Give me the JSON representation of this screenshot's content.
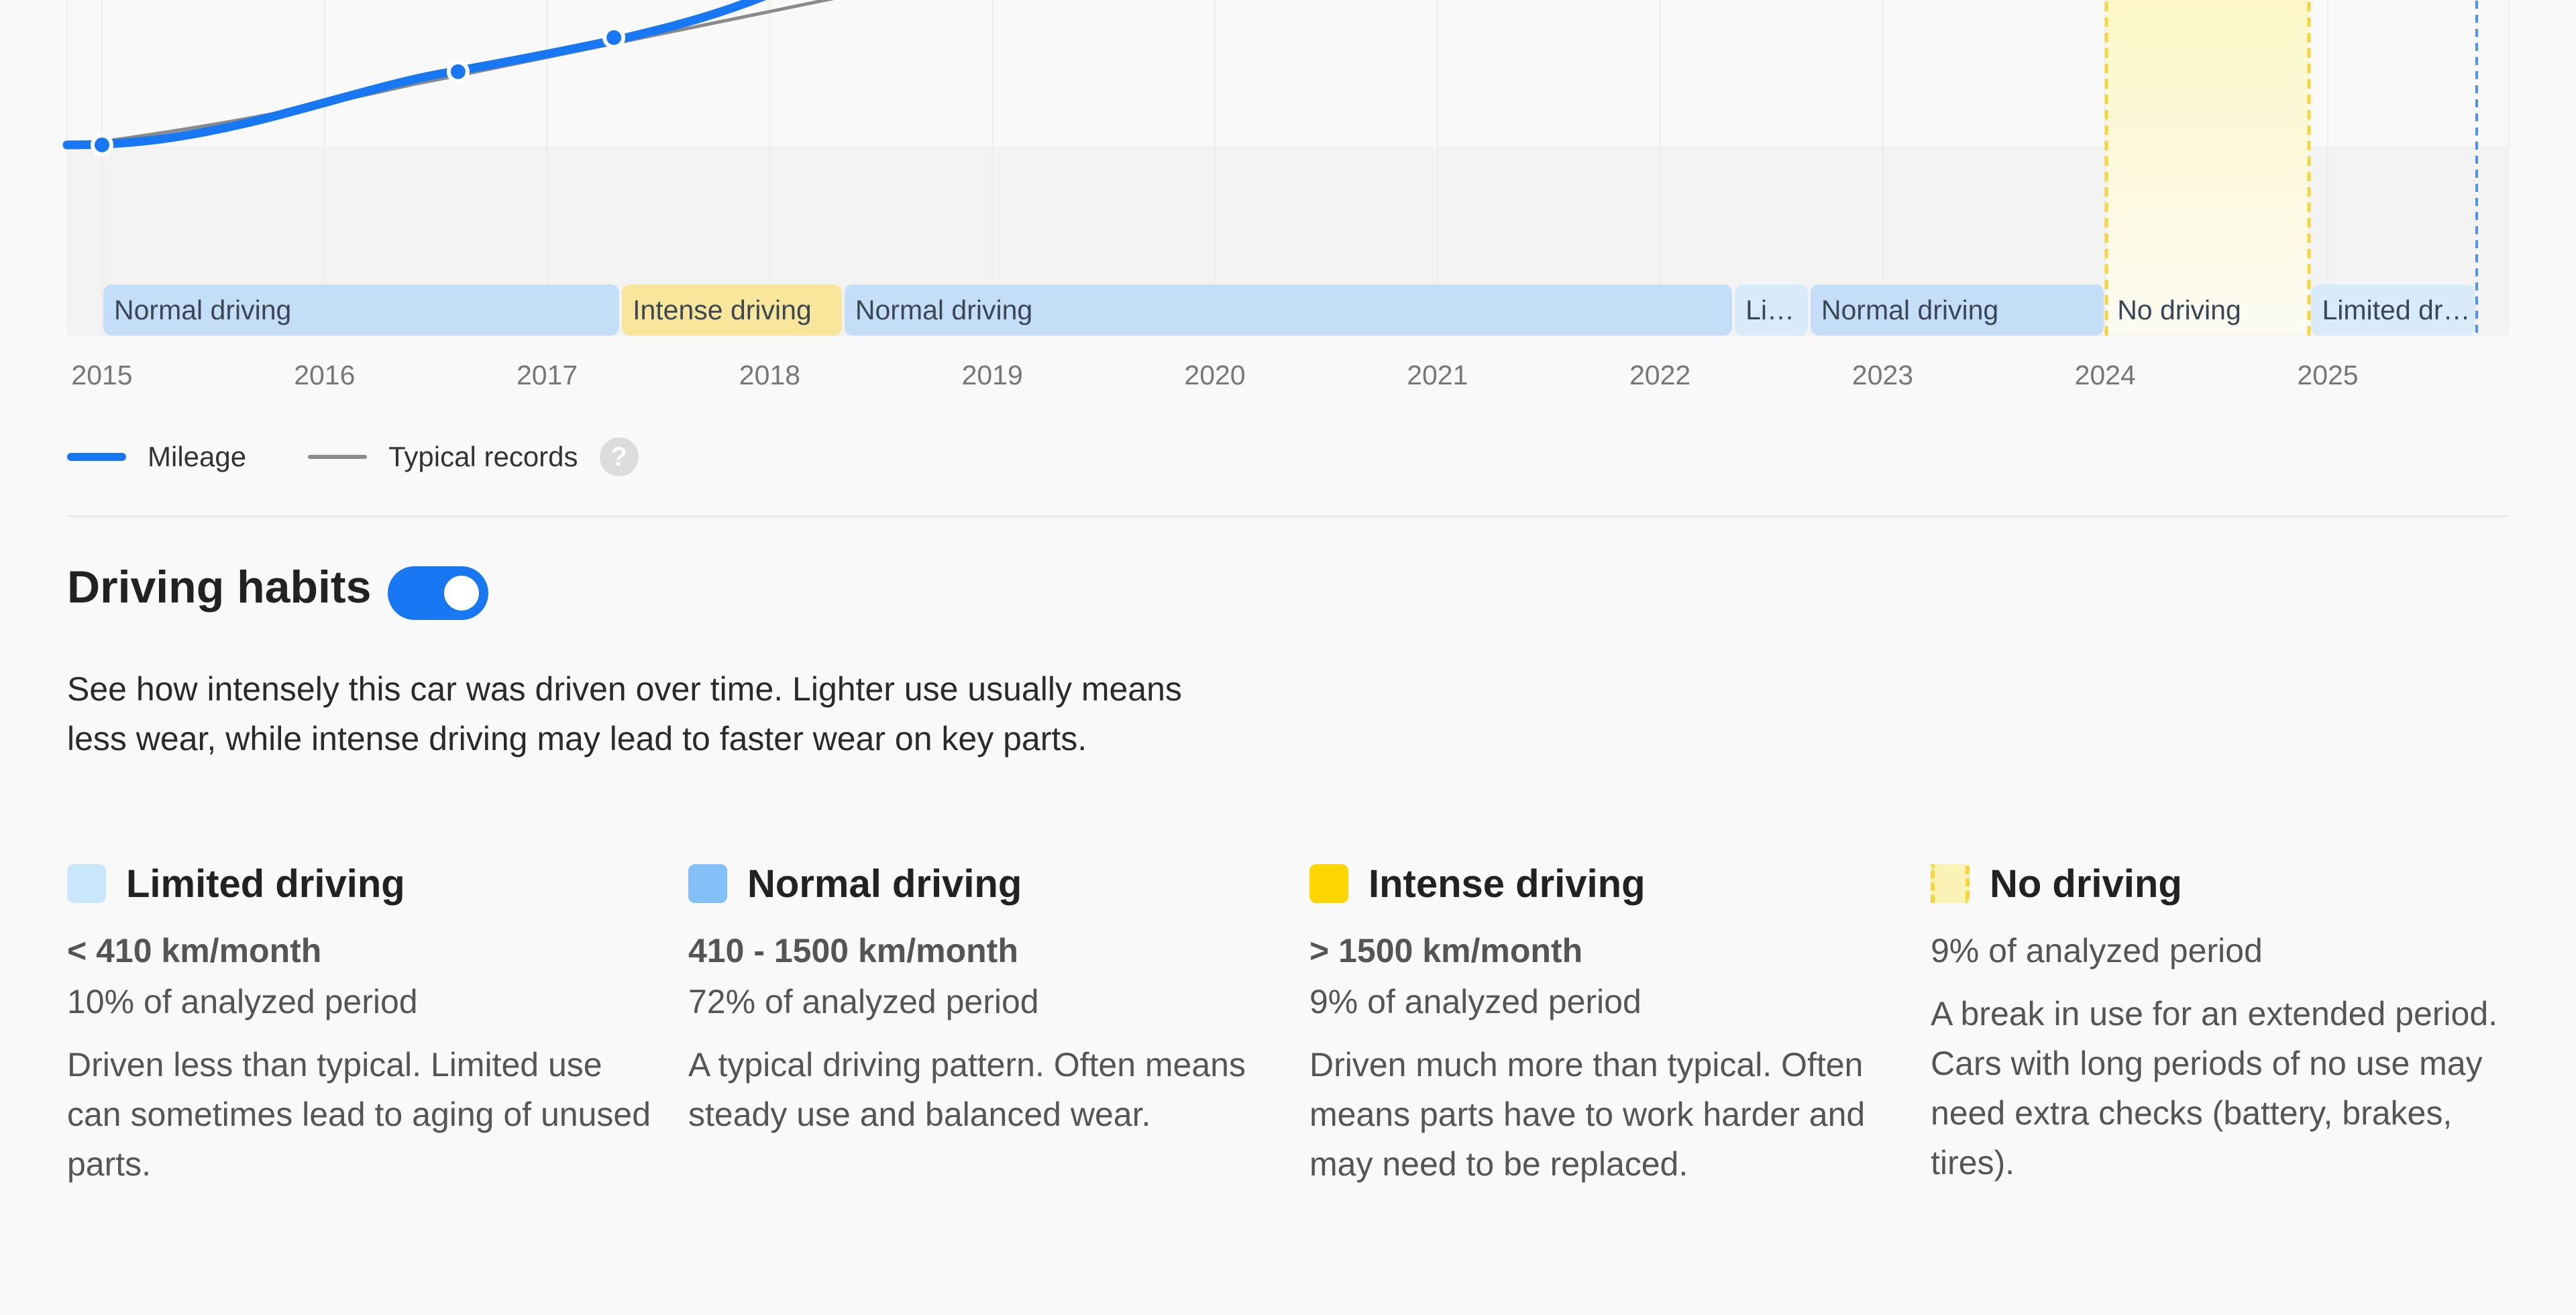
{
  "chart_data": {
    "type": "line",
    "x_ticks": [
      "2015",
      "2016",
      "2017",
      "2018",
      "2019",
      "2020",
      "2021",
      "2022",
      "2023",
      "2024",
      "2025"
    ],
    "series": [
      {
        "name": "Mileage",
        "color": "#1877f2",
        "points": [
          [
            2015.0,
            0
          ],
          [
            2016.6,
            15000
          ],
          [
            2017.3,
            22000
          ]
        ]
      },
      {
        "name": "Typical records",
        "color": "#8a8a8a"
      }
    ],
    "bands": [
      {
        "label": "Normal driving",
        "kind": "normal",
        "start": 2015.0,
        "end": 2017.33
      },
      {
        "label": "Intense driving",
        "kind": "intense",
        "start": 2017.33,
        "end": 2018.33
      },
      {
        "label": "Normal driving",
        "kind": "normal",
        "start": 2018.33,
        "end": 2022.33
      },
      {
        "label": "Limited driving",
        "kind": "limited",
        "start": 2022.33,
        "end": 2022.67
      },
      {
        "label": "Normal driving",
        "kind": "normal",
        "start": 2022.67,
        "end": 2024.0
      },
      {
        "label": "No driving",
        "kind": "none",
        "start": 2024.0,
        "end": 2024.92
      },
      {
        "label": "Limited driving",
        "kind": "limited",
        "start": 2024.92,
        "end": 2025.67
      }
    ],
    "grid": true
  },
  "legend": {
    "mileage": "Mileage",
    "typical": "Typical records",
    "help_icon": "question-mark-icon"
  },
  "section": {
    "title": "Driving habits",
    "toggle_on": true,
    "description": "See how intensely this car was driven over time. Lighter use usually means less wear, while intense driving may lead to faster wear on key parts."
  },
  "categories": [
    {
      "title": "Limited driving",
      "color": "#c9e6fb",
      "range": "< 410 km/month",
      "share": "10% of analyzed period",
      "text": "Driven less than typical. Limited use can sometimes lead to aging of unused parts."
    },
    {
      "title": "Normal driving",
      "color": "#82c0f7",
      "range": "410 - 1500 km/month",
      "share": "72% of analyzed period",
      "text": "A typical driving pattern. Often means steady use and balanced wear."
    },
    {
      "title": "Intense driving",
      "color": "#ffd600",
      "range": "> 1500 km/month",
      "share": "9% of analyzed period",
      "text": "Driven much more than typical. Often means parts have to work harder and may need to be replaced."
    },
    {
      "title": "No driving",
      "color": "#fbf2b6",
      "range": "",
      "share": "9% of analyzed period",
      "text": "A break in use for an extended period. Cars with long periods of no use may need extra checks (battery, brakes, tires)."
    }
  ]
}
